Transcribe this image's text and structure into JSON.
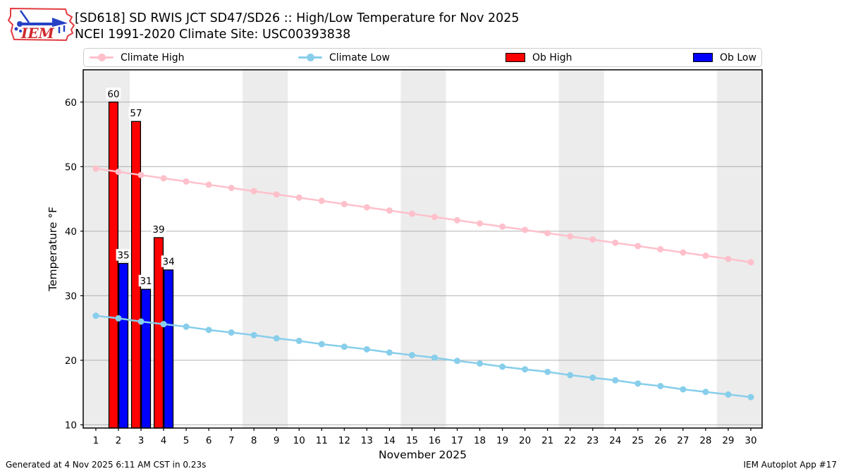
{
  "header": {
    "logo_text": "IEM",
    "title": "[SD618] SD RWIS JCT SD47/SD26 :: High/Low Temperature for Nov 2025",
    "subtitle": "NCEI 1991-2020 Climate Site: USC00393838"
  },
  "legend": {
    "items": [
      {
        "label": "Climate High",
        "type": "line",
        "color": "#ffc0cb"
      },
      {
        "label": "Climate Low",
        "type": "line",
        "color": "#87ceeb"
      },
      {
        "label": "Ob High",
        "type": "box",
        "color": "#ff0000"
      },
      {
        "label": "Ob Low",
        "type": "box",
        "color": "#0000ff"
      }
    ]
  },
  "footer": {
    "left": "Generated at 4 Nov 2025 6:11 AM CST in 0.23s",
    "right": "IEM Autoplot App #17"
  },
  "chart_data": {
    "type": "bar+line",
    "xlabel": "November 2025",
    "ylabel": "Temperature °F",
    "x": [
      1,
      2,
      3,
      4,
      5,
      6,
      7,
      8,
      9,
      10,
      11,
      12,
      13,
      14,
      15,
      16,
      17,
      18,
      19,
      20,
      21,
      22,
      23,
      24,
      25,
      26,
      27,
      28,
      29,
      30
    ],
    "xlim": [
      0.44,
      30.5
    ],
    "ylim": [
      9.5,
      65
    ],
    "yticks": [
      10,
      20,
      30,
      40,
      50,
      60
    ],
    "grid": true,
    "grid_color": "#b0b0b0",
    "band_color": "#ececec",
    "weekend_bands": [
      [
        0.44,
        2.5
      ],
      [
        7.5,
        9.5
      ],
      [
        14.5,
        16.5
      ],
      [
        21.5,
        23.5
      ],
      [
        28.5,
        30.5
      ]
    ],
    "series": [
      {
        "name": "Climate High",
        "type": "line",
        "color": "#ffc0cb",
        "values": [
          49.7,
          49.2,
          48.7,
          48.2,
          47.7,
          47.2,
          46.7,
          46.2,
          45.7,
          45.2,
          44.7,
          44.2,
          43.7,
          43.2,
          42.7,
          42.2,
          41.7,
          41.2,
          40.7,
          40.2,
          39.7,
          39.2,
          38.7,
          38.2,
          37.7,
          37.2,
          36.7,
          36.2,
          35.7,
          35.2
        ]
      },
      {
        "name": "Climate Low",
        "type": "line",
        "color": "#87ceeb",
        "values": [
          26.9,
          26.5,
          26.0,
          25.6,
          25.2,
          24.7,
          24.3,
          23.9,
          23.4,
          23.0,
          22.5,
          22.1,
          21.7,
          21.2,
          20.8,
          20.4,
          19.9,
          19.5,
          19.0,
          18.6,
          18.2,
          17.7,
          17.3,
          16.9,
          16.4,
          16.0,
          15.5,
          15.1,
          14.7,
          14.3
        ]
      },
      {
        "name": "Ob High",
        "type": "bar",
        "color": "#ff0000",
        "offset": [
          -0.42,
          -0.02
        ],
        "points": [
          {
            "x": 2,
            "y": 60
          },
          {
            "x": 3,
            "y": 57
          },
          {
            "x": 4,
            "y": 39
          }
        ]
      },
      {
        "name": "Ob Low",
        "type": "bar",
        "color": "#0000ff",
        "offset": [
          0.02,
          0.42
        ],
        "points": [
          {
            "x": 2,
            "y": 35
          },
          {
            "x": 3,
            "y": 31
          },
          {
            "x": 4,
            "y": 34
          }
        ]
      }
    ]
  }
}
